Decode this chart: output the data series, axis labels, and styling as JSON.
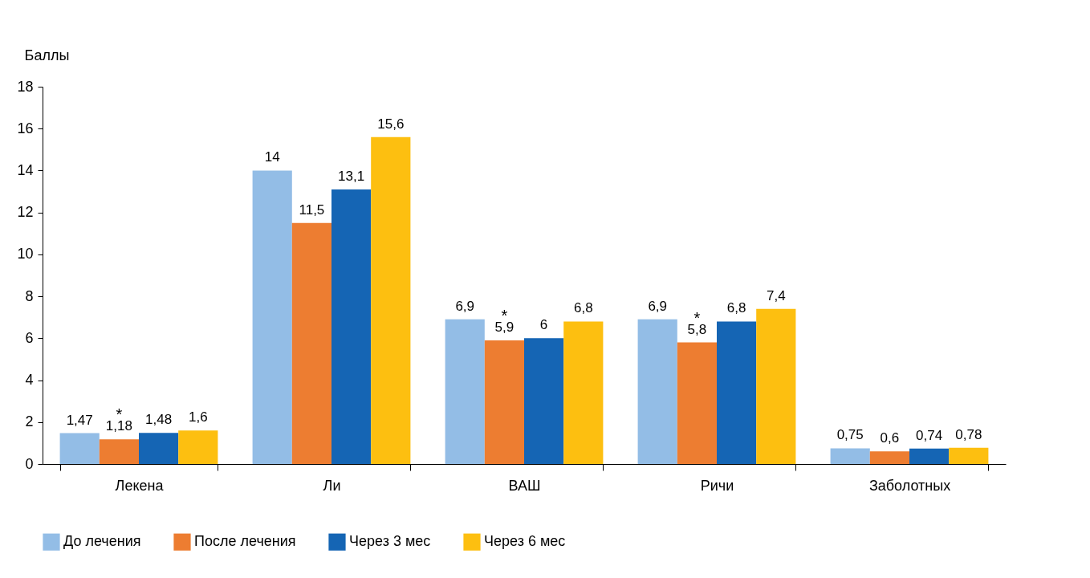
{
  "chart_data": {
    "type": "bar",
    "ylabel": "Баллы",
    "categories": [
      "Лекена",
      "Ли",
      "ВАШ",
      "Ричи",
      "Заболотных"
    ],
    "series": [
      {
        "name": "До лечения",
        "color": "#93bde6",
        "values": [
          1.47,
          14,
          6.9,
          6.9,
          0.75
        ],
        "value_labels": [
          "1,47",
          "14",
          "6,9",
          "6,9",
          "0,75"
        ]
      },
      {
        "name": "После лечения",
        "color": "#ed7d31",
        "values": [
          1.18,
          11.5,
          5.9,
          5.8,
          0.6
        ],
        "value_labels": [
          "1,18",
          "11,5",
          "5,9",
          "5,8",
          "0,6"
        ]
      },
      {
        "name": "Через 3 мес",
        "color": "#1565b4",
        "values": [
          1.48,
          13.1,
          6,
          6.8,
          0.74
        ],
        "value_labels": [
          "1,48",
          "13,1",
          "6",
          "6,8",
          "0,74"
        ]
      },
      {
        "name": "Через 6 мес",
        "color": "#fdbf10",
        "values": [
          1.6,
          15.6,
          6.8,
          7.4,
          0.78
        ],
        "value_labels": [
          "1,6",
          "15,6",
          "6,8",
          "7,4",
          "0,78"
        ]
      }
    ],
    "annotations": [
      {
        "text": "*",
        "x": "Лекена",
        "y": 1.18
      },
      {
        "text": "*",
        "x": "ВАШ",
        "y": 5.9
      },
      {
        "text": "*",
        "x": "Ричи",
        "y": 5.8
      }
    ],
    "ylim": [
      0,
      18
    ],
    "yticks": [
      0,
      2,
      4,
      6,
      8,
      10,
      12,
      14,
      16,
      18
    ],
    "grid": false,
    "legend": "bottom"
  }
}
